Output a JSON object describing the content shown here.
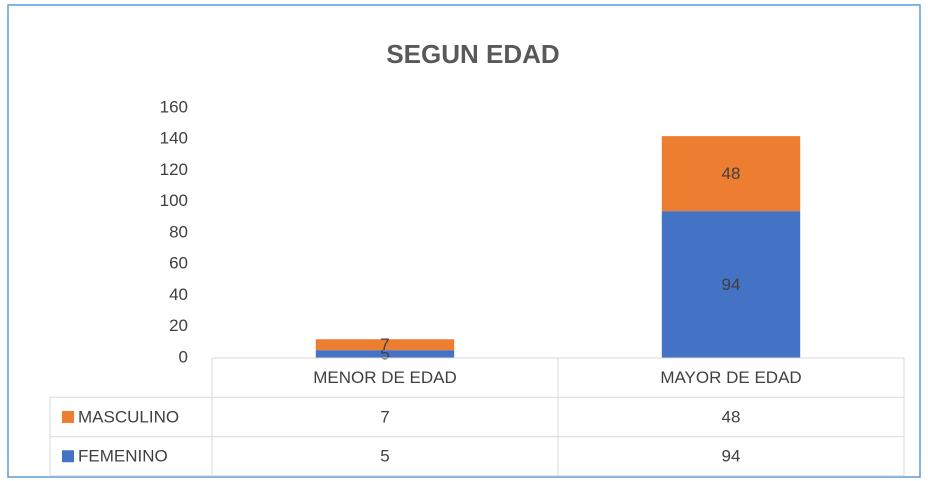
{
  "chart_data": {
    "type": "stacked_bar",
    "title": "SEGUN EDAD",
    "categories": [
      "MENOR DE EDAD",
      "MAYOR DE EDAD"
    ],
    "series": [
      {
        "name": "FEMENINO",
        "color": "#4472c4",
        "values": [
          5,
          94
        ]
      },
      {
        "name": "MASCULINO",
        "color": "#ed7d31",
        "values": [
          7,
          48
        ]
      }
    ],
    "ylim": [
      0,
      160
    ],
    "yticks": [
      0,
      20,
      40,
      60,
      80,
      100,
      120,
      140,
      160
    ],
    "grid": false,
    "data_table": true
  }
}
